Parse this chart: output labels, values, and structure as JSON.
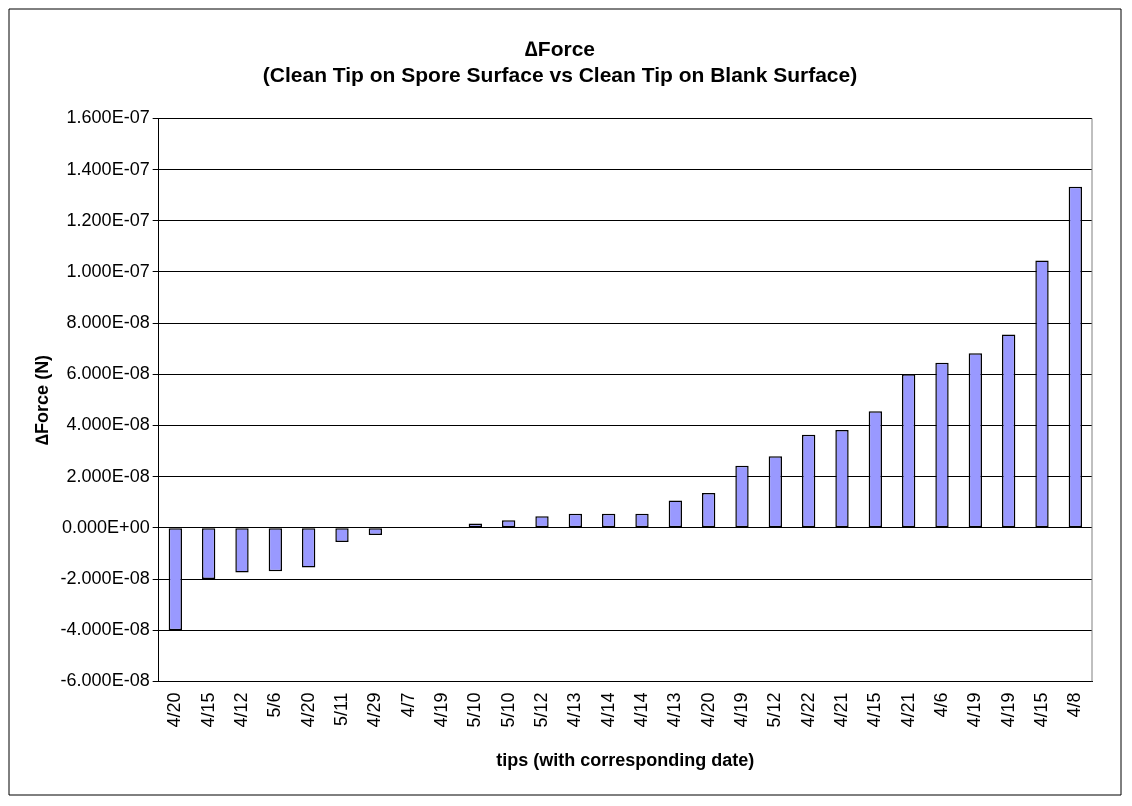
{
  "chart_data": {
    "type": "bar",
    "title": "∆Force\n(Clean Tip on Spore Surface vs Clean Tip on Blank Surface)",
    "xlabel": "tips (with corresponding date)",
    "ylabel": "∆Force (N)",
    "categories": [
      "4/20",
      "4/15",
      "4/12",
      "5/6",
      "4/20",
      "5/11",
      "4/29",
      "4/7",
      "4/19",
      "5/10",
      "5/10",
      "5/12",
      "4/13",
      "4/14",
      "4/14",
      "4/13",
      "4/20",
      "4/19",
      "5/12",
      "4/22",
      "4/21",
      "4/15",
      "4/21",
      "4/6",
      "4/19",
      "4/19",
      "4/15",
      "4/8"
    ],
    "values": [
      -4e-08,
      -2e-08,
      -1.75e-08,
      -1.7e-08,
      -1.55e-08,
      -5.5e-09,
      -2.8e-09,
      0,
      0,
      1.7e-09,
      3e-09,
      4.5e-09,
      5.5e-09,
      5.5e-09,
      5.5e-09,
      1.07e-08,
      1.36e-08,
      2.43e-08,
      2.8e-08,
      3.64e-08,
      3.82e-08,
      4.56e-08,
      6e-08,
      6.45e-08,
      6.82e-08,
      7.56e-08,
      1.045e-07,
      1.333e-07
    ],
    "color": "#9999ff",
    "ylim": [
      -6e-08,
      1.6e-07
    ],
    "yticks": [
      {
        "value": -6e-08,
        "label": "-6.000E-08"
      },
      {
        "value": -4e-08,
        "label": "-4.000E-08"
      },
      {
        "value": -2e-08,
        "label": "-2.000E-08"
      },
      {
        "value": 0,
        "label": "0.000E+00"
      },
      {
        "value": 2e-08,
        "label": "2.000E-08"
      },
      {
        "value": 4e-08,
        "label": "4.000E-08"
      },
      {
        "value": 6e-08,
        "label": "6.000E-08"
      },
      {
        "value": 8e-08,
        "label": "8.000E-08"
      },
      {
        "value": 1e-07,
        "label": "1.000E-07"
      },
      {
        "value": 1.2e-07,
        "label": "1.200E-07"
      },
      {
        "value": 1.4e-07,
        "label": "1.400E-07"
      },
      {
        "value": 1.6e-07,
        "label": "1.600E-07"
      }
    ],
    "grid": "y",
    "legend": false
  }
}
